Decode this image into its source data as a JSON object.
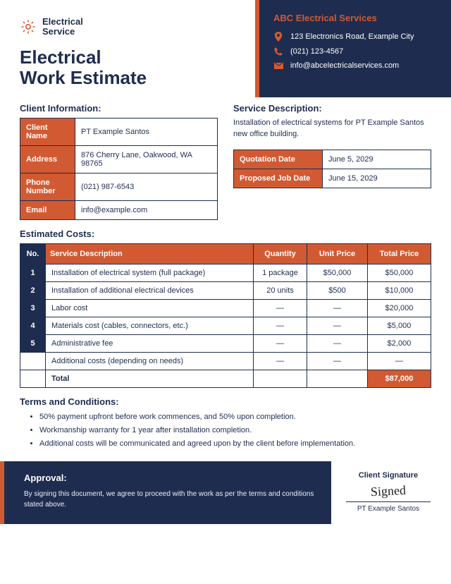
{
  "colors": {
    "navy": "#1e2d4f",
    "orange": "#d25a32",
    "white": "#ffffff"
  },
  "logo": {
    "line1": "Electrical",
    "line2": "Service"
  },
  "title": {
    "line1": "Electrical",
    "line2": "Work Estimate"
  },
  "company": {
    "name": "ABC Electrical Services",
    "address": "123 Electronics Road, Example City",
    "phone": "(021) 123-4567",
    "email": "info@abcelectricalservices.com"
  },
  "clientSection": {
    "title": "Client Information:"
  },
  "client": {
    "nameLabel": "Client Name",
    "name": "PT Example Santos",
    "addressLabel": "Address",
    "address": "876 Cherry Lane, Oakwood, WA 98765",
    "phoneLabel": "Phone Number",
    "phone": "(021) 987-6543",
    "emailLabel": "Email",
    "email": "info@example.com"
  },
  "serviceDesc": {
    "title": "Service Description:",
    "text": "Installation of electrical systems for PT Example Santos new office building."
  },
  "dates": {
    "quotationLabel": "Quotation Date",
    "quotation": "June 5, 2029",
    "proposedLabel": "Proposed Job Date",
    "proposed": "June 15, 2029"
  },
  "costsSection": {
    "title": "Estimated Costs:"
  },
  "costsHeaders": {
    "no": "No.",
    "desc": "Service Description",
    "qty": "Quantity",
    "unit": "Unit Price",
    "total": "Total Price"
  },
  "costs": {
    "rows": [
      {
        "no": "1",
        "desc": "Installation of electrical system (full package)",
        "qty": "1 package",
        "unit": "$50,000",
        "total": "$50,000"
      },
      {
        "no": "2",
        "desc": "Installation of additional electrical devices",
        "qty": "20 units",
        "unit": "$500",
        "total": "$10,000"
      },
      {
        "no": "3",
        "desc": "Labor cost",
        "qty": "—",
        "unit": "—",
        "total": "$20,000"
      },
      {
        "no": "4",
        "desc": "Materials cost (cables, connectors, etc.)",
        "qty": "—",
        "unit": "—",
        "total": "$5,000"
      },
      {
        "no": "5",
        "desc": "Administrative fee",
        "qty": "—",
        "unit": "—",
        "total": "$2,000"
      },
      {
        "no": "",
        "desc": "Additional costs (depending on needs)",
        "qty": "—",
        "unit": "—",
        "total": "—"
      }
    ],
    "totalLabel": "Total",
    "grandTotal": "$87,000"
  },
  "terms": {
    "title": "Terms and Conditions:",
    "items": [
      "50% payment upfront before work commences, and 50% upon completion.",
      "Workmanship warranty for 1 year after installation completion.",
      "Additional costs will be communicated and agreed upon by the client before implementation."
    ]
  },
  "approval": {
    "title": "Approval:",
    "text": "By signing this document, we agree to proceed with the work as per the terms and conditions stated above."
  },
  "signature": {
    "label": "Client Signature",
    "name": "PT Example Santos"
  }
}
